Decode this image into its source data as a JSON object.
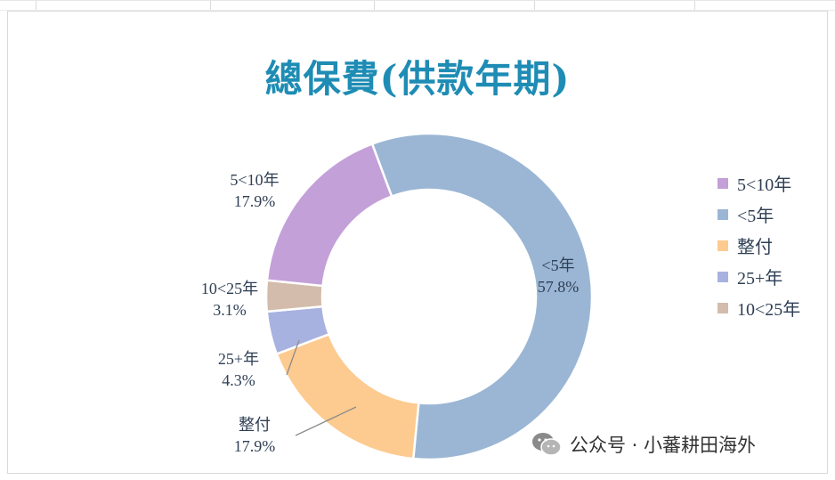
{
  "chart_data": {
    "type": "pie",
    "variant": "donut",
    "title": "總保費(供款年期)",
    "slices": [
      {
        "label": "<5年",
        "value": 57.8,
        "value_label": "57.8%",
        "color": "#9ab6d4"
      },
      {
        "label": "整付",
        "value": 17.9,
        "value_label": "17.9%",
        "color": "#fdca8f"
      },
      {
        "label": "25+年",
        "value": 4.3,
        "value_label": "4.3%",
        "color": "#a8b2e0"
      },
      {
        "label": "10<25年",
        "value": 3.1,
        "value_label": "3.1%",
        "color": "#d3bcab"
      },
      {
        "label": "5<10年",
        "value": 17.9,
        "value_label": "17.9%",
        "color": "#c3a0d8"
      }
    ],
    "legend": {
      "placement": "right",
      "entries": [
        "5<10年",
        "<5年",
        "整付",
        "25+年",
        "10<25年"
      ]
    },
    "data_labels": [
      {
        "series": "<5年",
        "line1": "<5年",
        "line2": "57.8%"
      },
      {
        "series": "整付",
        "line1": "整付",
        "line2": "17.9%"
      },
      {
        "series": "25+年",
        "line1": "25+年",
        "line2": "4.3%"
      },
      {
        "series": "10<25年",
        "line1": "10<25年",
        "line2": "3.1%"
      },
      {
        "series": "5<10年",
        "line1": "5<10年",
        "line2": "17.9%"
      }
    ]
  },
  "colors": {
    "title": "#1e8cb4",
    "text": "#2f3f55"
  },
  "watermark": {
    "text": "公众号 · 小蕃耕田海外",
    "icon": "wechat-icon"
  }
}
